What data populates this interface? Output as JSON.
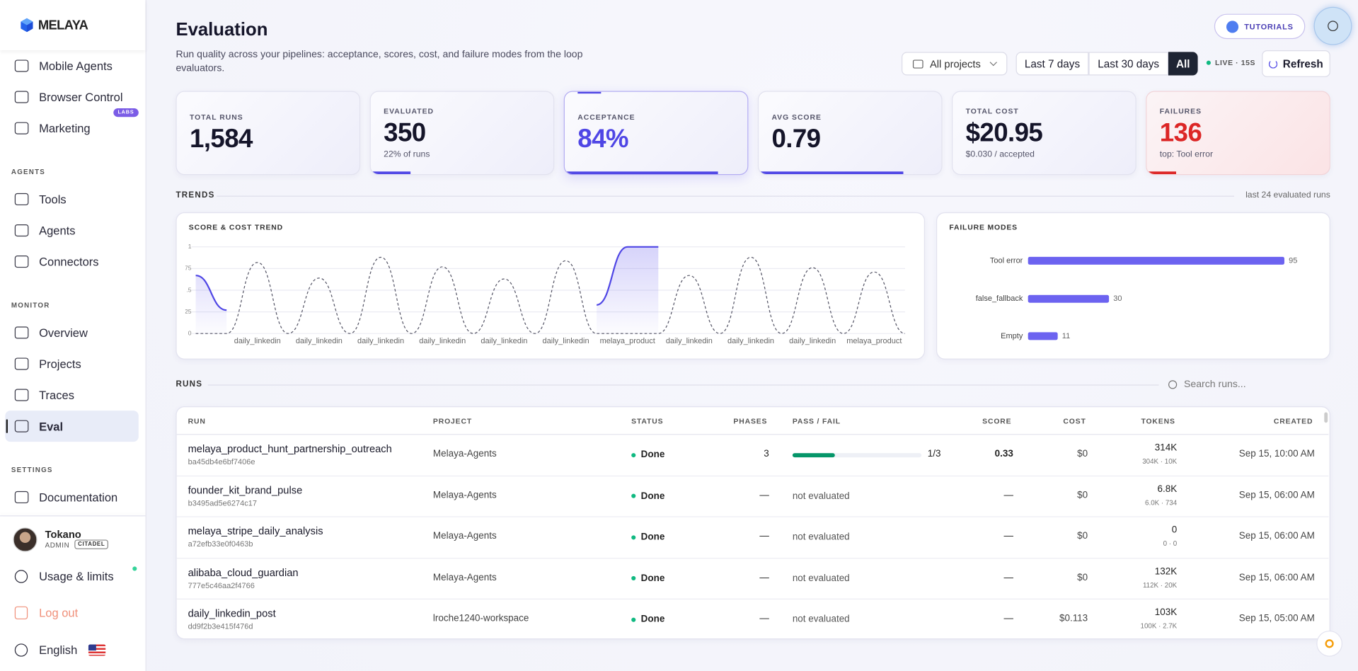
{
  "sidebar": {
    "brand": "MELAYA",
    "top_items": [
      "Mobile Agents",
      "Browser Control",
      "Marketing"
    ],
    "badge": "LABS",
    "sections": [
      {
        "title": "AGENTS",
        "items": [
          "Tools",
          "Agents",
          "Connectors"
        ]
      },
      {
        "title": "MONITOR",
        "items": [
          "Overview",
          "Projects",
          "Traces",
          "Eval"
        ]
      },
      {
        "title": "SETTINGS",
        "items": [
          "Documentation"
        ]
      }
    ],
    "user": {
      "name": "Tokano",
      "role": "ADMIN",
      "badge": "CITADEL"
    },
    "footer": [
      "Usage & limits",
      "Log out",
      "English"
    ]
  },
  "header": {
    "title": "Evaluation",
    "subtitle": "Run quality across your pipelines: acceptance, scores, cost, and failure modes from the loop evaluators.",
    "tutorials": "TUTORIALS",
    "project_filter": "All projects",
    "ranges": [
      "Last 7 days",
      "Last 30 days",
      "All"
    ],
    "live": "LIVE · 15S",
    "refresh": "Refresh"
  },
  "kpis": [
    {
      "label": "TOTAL RUNS",
      "value": "1,584"
    },
    {
      "label": "EVALUATED",
      "value": "350",
      "sub": "22% of runs"
    },
    {
      "label": "ACCEPTANCE",
      "value": "84%"
    },
    {
      "label": "AVG SCORE",
      "value": "0.79"
    },
    {
      "label": "TOTAL COST",
      "value": "$20.95",
      "sub": "$0.030 / accepted"
    },
    {
      "label": "FAILURES",
      "value": "136",
      "sub": "top: Tool error"
    }
  ],
  "trends": {
    "title": "TRENDS",
    "note": "last 24 evaluated runs"
  },
  "chart_data": [
    {
      "type": "line",
      "title": "SCORE & COST TREND",
      "categories": [
        null,
        null,
        "daily_linkedin",
        null,
        "daily_linkedin",
        null,
        "daily_linkedin",
        null,
        "daily_linkedin",
        null,
        "daily_linkedin",
        null,
        "daily_linkedin",
        null,
        "melaya_product",
        null,
        "daily_linkedin",
        null,
        "daily_linkedin",
        null,
        "daily_linkedin",
        null,
        "melaya_product",
        null
      ],
      "series": [
        {
          "color": "#4f46e5",
          "area": true,
          "values": [
            0.67,
            0.27,
            null,
            null,
            null,
            null,
            null,
            null,
            null,
            null,
            null,
            null,
            null,
            0.33,
            1,
            1,
            null,
            null,
            null,
            null,
            null,
            null,
            null,
            null
          ]
        },
        {
          "color": "#555566",
          "dashed": true,
          "values": [
            0,
            0,
            0.82,
            0,
            0.64,
            0,
            0.88,
            0,
            0.77,
            0,
            0.63,
            0,
            0.84,
            0,
            0,
            0,
            0.67,
            0,
            0.88,
            0,
            0.76,
            0,
            0.71,
            0
          ]
        }
      ],
      "ylim": [
        0,
        1
      ],
      "yticks": [
        0,
        {
          "value": 0.25,
          "label": ".25"
        },
        {
          "value": 0.5,
          "label": ".5"
        },
        {
          "value": 0.75,
          "label": ".75"
        },
        1
      ],
      "grid": true
    },
    {
      "type": "hbar",
      "title": "FAILURE MODES",
      "categories": [
        "Tool error",
        "false_fallback",
        "Empty"
      ],
      "values": [
        95,
        30,
        11
      ],
      "color": "#6c63f0",
      "xlim": [
        0,
        95
      ]
    }
  ],
  "runs": {
    "title": "RUNS",
    "search_placeholder": "Search runs...",
    "columns": [
      "RUN",
      "PROJECT",
      "STATUS",
      "PHASES",
      "PASS / FAIL",
      "SCORE",
      "COST",
      "TOKENS",
      "CREATED"
    ],
    "rows": [
      {
        "run": "melaya_product_hunt_partnership_outreach",
        "id": "ba45db4e6bf7406e",
        "project": "Melaya-Agents",
        "status": "Done",
        "phases": "3",
        "pass_fail": "1/3",
        "score": "0.33",
        "cost": "$0",
        "tokens": "314K",
        "tokens_split": "304K · 10K",
        "created": "Sep 15, 10:00 AM"
      },
      {
        "run": "founder_kit_brand_pulse",
        "id": "b3495ad5e6274c17",
        "project": "Melaya-Agents",
        "status": "Done",
        "phases": "—",
        "pass_fail": "not evaluated",
        "score": "—",
        "cost": "$0",
        "tokens": "6.8K",
        "tokens_split": "6.0K · 734",
        "created": "Sep 15, 06:00 AM"
      },
      {
        "run": "melaya_stripe_daily_analysis",
        "id": "a72efb33e0f0463b",
        "project": "Melaya-Agents",
        "status": "Done",
        "phases": "—",
        "pass_fail": "not evaluated",
        "score": "—",
        "cost": "$0",
        "tokens": "0",
        "tokens_split": "0 · 0",
        "created": "Sep 15, 06:00 AM"
      },
      {
        "run": "alibaba_cloud_guardian",
        "id": "777e5c46aa2f4766",
        "project": "Melaya-Agents",
        "status": "Done",
        "phases": "—",
        "pass_fail": "not evaluated",
        "score": "—",
        "cost": "$0",
        "tokens": "132K",
        "tokens_split": "112K · 20K",
        "created": "Sep 15, 06:00 AM"
      },
      {
        "run": "daily_linkedin_post",
        "id": "dd9f2b3e415f476d",
        "project": "lroche1240-workspace",
        "status": "Done",
        "phases": "—",
        "pass_fail": "not evaluated",
        "score": "—",
        "cost": "$0.113",
        "tokens": "103K",
        "tokens_split": "100K · 2.7K",
        "created": "Sep 15, 05:00 AM"
      }
    ]
  }
}
